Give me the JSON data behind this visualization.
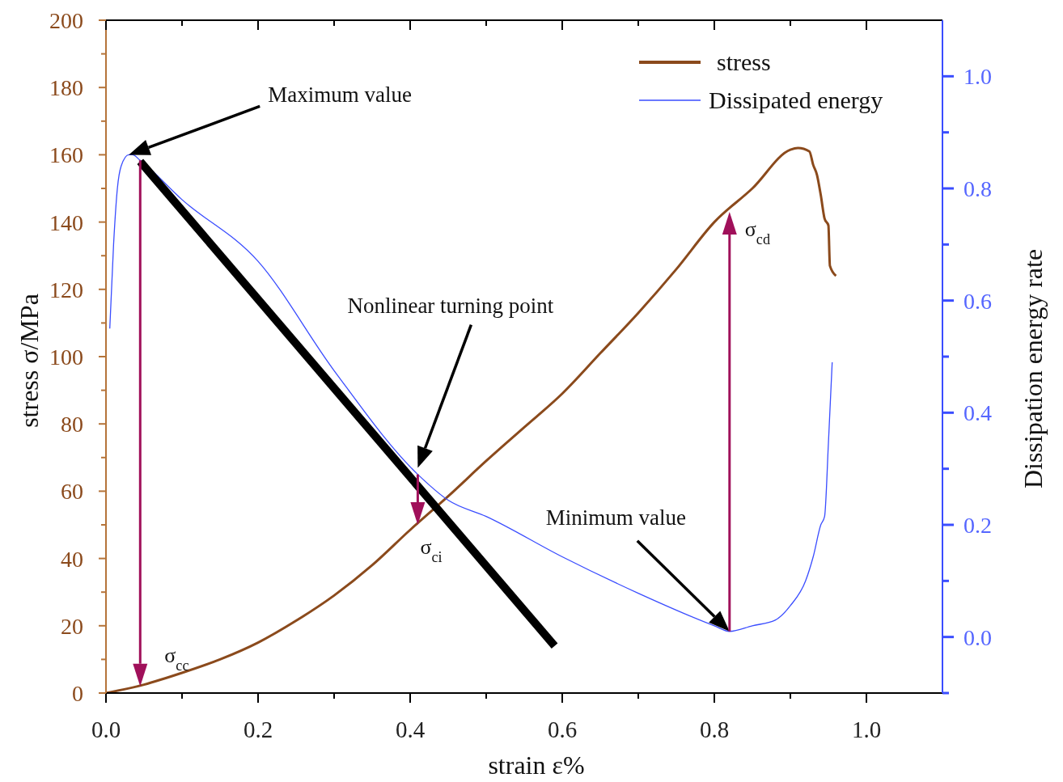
{
  "chart_data": {
    "type": "line",
    "xlabel": "strain ε%",
    "ylabel": "stress σ/MPa",
    "y2label": "Dissipation energy rate",
    "xlim": [
      0,
      1.1
    ],
    "xticks": [
      {
        "value": 0,
        "label": "0.0"
      },
      {
        "value": 0.2,
        "label": "0.2"
      },
      {
        "value": 0.4,
        "label": "0.4"
      },
      {
        "value": 0.6,
        "label": "0.6"
      },
      {
        "value": 0.8,
        "label": "0.8"
      },
      {
        "value": 1.0,
        "label": "1.0"
      }
    ],
    "ylim": [
      0,
      200
    ],
    "yticks": [
      0,
      20,
      40,
      60,
      80,
      100,
      120,
      140,
      160,
      180,
      200
    ],
    "y2lim": [
      -0.1,
      1.1
    ],
    "y2ticks": [
      {
        "value": 0,
        "label": "0.0"
      },
      {
        "value": 0.2,
        "label": "0.2"
      },
      {
        "value": 0.4,
        "label": "0.4"
      },
      {
        "value": 0.6,
        "label": "0.6"
      },
      {
        "value": 0.8,
        "label": "0.8"
      },
      {
        "value": 1.0,
        "label": "1.0"
      }
    ],
    "legend": "top right",
    "series": [
      {
        "name": "stress",
        "color": "#8b4a1c",
        "x": [
          0,
          0.05,
          0.1,
          0.15,
          0.2,
          0.25,
          0.3,
          0.35,
          0.4,
          0.45,
          0.5,
          0.55,
          0.6,
          0.65,
          0.7,
          0.75,
          0.8,
          0.85,
          0.9,
          0.91,
          0.925,
          0.93,
          0.935,
          0.94,
          0.945,
          0.95,
          0.952,
          0.96
        ],
        "values": [
          0,
          2.5,
          6,
          10,
          15,
          21.5,
          29,
          38,
          48.5,
          58.5,
          69,
          79,
          89,
          101,
          113,
          126,
          140,
          150,
          161.5,
          162,
          161,
          157,
          154,
          148,
          141,
          139,
          127,
          124
        ]
      },
      {
        "name": "Dissipated energy",
        "color": "#3a4dff",
        "axis": "y2",
        "x": [
          0.005,
          0.01,
          0.015,
          0.02,
          0.03,
          0.035,
          0.045,
          0.1,
          0.2,
          0.3,
          0.41,
          0.45,
          0.5,
          0.6,
          0.7,
          0.8,
          0.82,
          0.85,
          0.88,
          0.9,
          0.92,
          0.93,
          0.94,
          0.945,
          0.95,
          0.955
        ],
        "values": [
          0.55,
          0.7,
          0.8,
          0.84,
          0.86,
          0.86,
          0.85,
          0.78,
          0.67,
          0.475,
          0.29,
          0.244,
          0.215,
          0.143,
          0.078,
          0.02,
          0.01,
          0.02,
          0.03,
          0.056,
          0.1,
          0.143,
          0.2,
          0.215,
          0.345,
          0.49
        ]
      },
      {
        "type": "line",
        "color": "#000000",
        "x": [
          0.045,
          0.59
        ],
        "values": [
          158,
          14
        ]
      }
    ],
    "annotations": [
      "Maximum value",
      "Nonlinear turning point",
      "Minimum value",
      {
        "text": "σ$_{cc}$",
        "x": 0.045,
        "y": 2
      },
      {
        "text": "σ$_{ci}$",
        "x": 0.41,
        "y": 50
      },
      {
        "text": "σ$_{cd}$",
        "x": 0.82,
        "y": 143
      }
    ]
  }
}
